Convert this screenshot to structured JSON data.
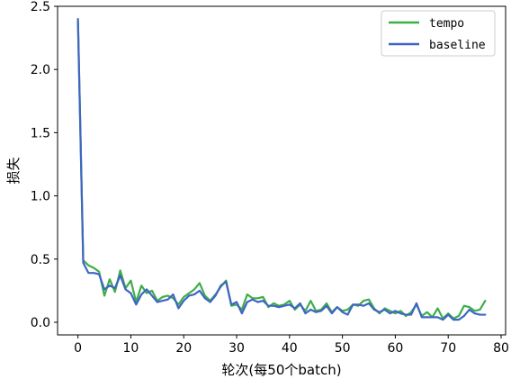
{
  "chart_data": {
    "type": "line",
    "title": "",
    "xlabel": "轮次(每50个batch)",
    "ylabel": "损失",
    "xlim": [
      -3.85,
      80.85
    ],
    "ylim": [
      -0.1,
      2.5
    ],
    "xticks": [
      0,
      10,
      20,
      30,
      40,
      50,
      60,
      70,
      80
    ],
    "xtick_labels": [
      "0",
      "10",
      "20",
      "30",
      "40",
      "50",
      "60",
      "70",
      "80"
    ],
    "yticks": [
      0.0,
      0.5,
      1.0,
      1.5,
      2.0,
      2.5
    ],
    "ytick_labels": [
      "0.0",
      "0.5",
      "1.0",
      "1.5",
      "2.0",
      "2.5"
    ],
    "grid": false,
    "legend_position": "top-right",
    "series": [
      {
        "name": "tempo",
        "color": "#3dae49",
        "x": [
          0,
          1,
          2,
          3,
          4,
          5,
          6,
          7,
          8,
          9,
          10,
          11,
          12,
          13,
          14,
          15,
          16,
          17,
          18,
          19,
          20,
          21,
          22,
          23,
          24,
          25,
          26,
          27,
          28,
          29,
          30,
          31,
          32,
          33,
          34,
          35,
          36,
          37,
          38,
          39,
          40,
          41,
          42,
          43,
          44,
          45,
          46,
          47,
          48,
          49,
          50,
          51,
          52,
          53,
          54,
          55,
          56,
          57,
          58,
          59,
          60,
          61,
          62,
          63,
          64,
          65,
          66,
          67,
          68,
          69,
          70,
          71,
          72,
          73,
          74,
          75,
          76,
          77
        ],
        "y": [
          2.38,
          0.49,
          0.45,
          0.43,
          0.4,
          0.21,
          0.34,
          0.24,
          0.41,
          0.27,
          0.33,
          0.16,
          0.29,
          0.23,
          0.25,
          0.17,
          0.2,
          0.21,
          0.19,
          0.14,
          0.2,
          0.23,
          0.26,
          0.31,
          0.21,
          0.17,
          0.22,
          0.28,
          0.33,
          0.13,
          0.14,
          0.1,
          0.22,
          0.19,
          0.19,
          0.2,
          0.12,
          0.15,
          0.13,
          0.14,
          0.17,
          0.1,
          0.14,
          0.09,
          0.17,
          0.09,
          0.1,
          0.15,
          0.08,
          0.12,
          0.09,
          0.1,
          0.14,
          0.13,
          0.17,
          0.18,
          0.11,
          0.07,
          0.11,
          0.09,
          0.07,
          0.09,
          0.05,
          0.08,
          0.14,
          0.05,
          0.08,
          0.04,
          0.11,
          0.03,
          0.07,
          0.03,
          0.05,
          0.13,
          0.12,
          0.09,
          0.1,
          0.17
        ]
      },
      {
        "name": "baseline",
        "color": "#3f65c4",
        "x": [
          0,
          1,
          2,
          3,
          4,
          5,
          6,
          7,
          8,
          9,
          10,
          11,
          12,
          13,
          14,
          15,
          16,
          17,
          18,
          19,
          20,
          21,
          22,
          23,
          24,
          25,
          26,
          27,
          28,
          29,
          30,
          31,
          32,
          33,
          34,
          35,
          36,
          37,
          38,
          39,
          40,
          41,
          42,
          43,
          44,
          45,
          46,
          47,
          48,
          49,
          50,
          51,
          52,
          53,
          54,
          55,
          56,
          57,
          58,
          59,
          60,
          61,
          62,
          63,
          64,
          65,
          66,
          67,
          68,
          69,
          70,
          71,
          72,
          73,
          74,
          75,
          76,
          77
        ],
        "y": [
          2.4,
          0.47,
          0.39,
          0.39,
          0.38,
          0.26,
          0.29,
          0.27,
          0.37,
          0.26,
          0.23,
          0.14,
          0.22,
          0.26,
          0.21,
          0.16,
          0.17,
          0.18,
          0.22,
          0.11,
          0.17,
          0.21,
          0.22,
          0.25,
          0.19,
          0.16,
          0.21,
          0.29,
          0.32,
          0.14,
          0.16,
          0.07,
          0.16,
          0.18,
          0.16,
          0.17,
          0.13,
          0.13,
          0.12,
          0.13,
          0.14,
          0.11,
          0.15,
          0.07,
          0.1,
          0.08,
          0.09,
          0.13,
          0.07,
          0.12,
          0.08,
          0.06,
          0.14,
          0.14,
          0.13,
          0.15,
          0.1,
          0.08,
          0.1,
          0.07,
          0.09,
          0.07,
          0.06,
          0.06,
          0.15,
          0.04,
          0.04,
          0.04,
          0.04,
          0.02,
          0.06,
          0.02,
          0.02,
          0.05,
          0.1,
          0.07,
          0.06,
          0.06
        ]
      }
    ]
  }
}
